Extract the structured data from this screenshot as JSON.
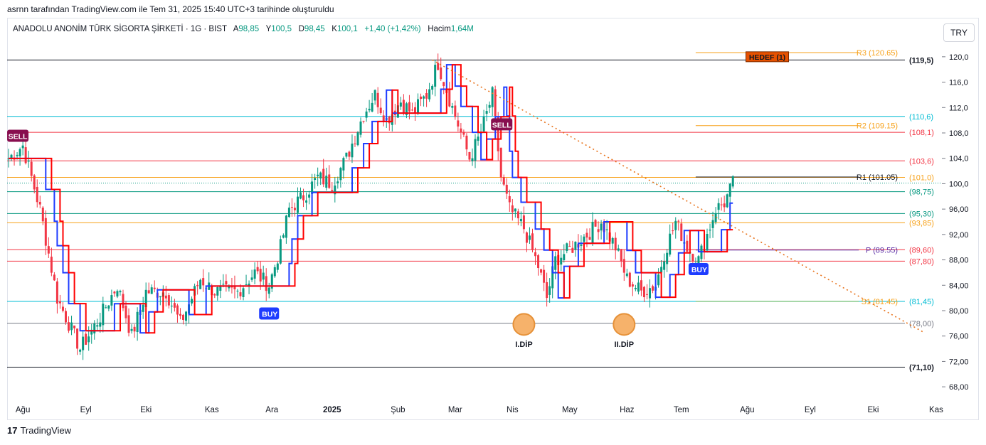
{
  "header": {
    "attribution": "asrnn tarafından TradingView.com ile Tem 31, 2025 15:40 UTC+3 tarihinde oluşturuldu"
  },
  "symbol": {
    "name": "ANADOLU ANONİM TÜRK SİGORTA ŞİRKETİ · 1G · BIST",
    "o_label": "A",
    "o_value": "98,85",
    "h_label": "Y",
    "h_value": "100,5",
    "l_label": "D",
    "l_value": "98,45",
    "c_label": "K",
    "c_value": "100,1",
    "change": "+1,40 (+1,42%)",
    "volume_label": "Hacim",
    "volume_value": "1,64M"
  },
  "currency_button": "TRY",
  "footer": {
    "brand": "TradingView",
    "logo_glyph": "17"
  },
  "colors": {
    "up": "#089981",
    "down": "#f23645",
    "band_red": "#ff0000",
    "band_blue": "#1e3cff",
    "trendline": "#e8731c",
    "pivot_orange": "#f7a21b"
  },
  "chart_data": {
    "type": "candlestick",
    "ylim": [
      66,
      122
    ],
    "y_ticks": [
      68,
      72,
      76,
      80,
      84,
      88,
      92,
      96,
      100,
      104,
      108,
      112,
      116,
      120
    ],
    "y_tick_labels": [
      "68,00",
      "72,00",
      "76,00",
      "80,00",
      "84,00",
      "88,00",
      "92,00",
      "96,00",
      "100,0",
      "104,0",
      "108,0",
      "112,0",
      "116,0",
      "120,0"
    ],
    "x_labels": [
      {
        "label": "Ağu",
        "t": 5
      },
      {
        "label": "Eyl",
        "t": 27
      },
      {
        "label": "Eki",
        "t": 48
      },
      {
        "label": "Kas",
        "t": 71
      },
      {
        "label": "Ara",
        "t": 92
      },
      {
        "label": "2025",
        "t": 113
      },
      {
        "label": "Şub",
        "t": 136
      },
      {
        "label": "Mar",
        "t": 156
      },
      {
        "label": "Nis",
        "t": 176
      },
      {
        "label": "May",
        "t": 196
      },
      {
        "label": "Haz",
        "t": 216
      },
      {
        "label": "Tem",
        "t": 235
      },
      {
        "label": "Ağu",
        "t": 258
      },
      {
        "label": "Eyl",
        "t": 280
      },
      {
        "label": "Eki",
        "t": 302
      },
      {
        "label": "Kas",
        "t": 324
      }
    ],
    "price_path": [
      [
        0,
        104
      ],
      [
        5,
        106
      ],
      [
        11,
        96
      ],
      [
        17,
        82
      ],
      [
        25,
        74
      ],
      [
        32,
        79
      ],
      [
        38,
        84
      ],
      [
        43,
        76
      ],
      [
        48,
        83
      ],
      [
        55,
        83
      ],
      [
        60,
        78
      ],
      [
        67,
        85
      ],
      [
        72,
        83
      ],
      [
        80,
        83
      ],
      [
        86,
        86
      ],
      [
        91,
        84
      ],
      [
        95,
        90
      ],
      [
        98,
        96
      ],
      [
        103,
        98
      ],
      [
        108,
        101
      ],
      [
        113,
        100
      ],
      [
        118,
        104
      ],
      [
        124,
        111
      ],
      [
        128,
        114
      ],
      [
        132,
        110
      ],
      [
        137,
        113
      ],
      [
        141,
        111
      ],
      [
        146,
        114
      ],
      [
        150,
        119
      ],
      [
        155,
        112
      ],
      [
        161,
        104
      ],
      [
        165,
        108
      ],
      [
        169,
        114
      ],
      [
        172,
        101
      ],
      [
        175,
        96
      ],
      [
        180,
        93
      ],
      [
        185,
        87
      ],
      [
        188,
        82
      ],
      [
        191,
        88
      ],
      [
        197,
        90
      ],
      [
        202,
        92
      ],
      [
        207,
        94
      ],
      [
        212,
        90
      ],
      [
        216,
        85
      ],
      [
        221,
        83
      ],
      [
        226,
        84
      ],
      [
        229,
        89
      ],
      [
        233,
        94
      ],
      [
        237,
        90
      ],
      [
        241,
        88
      ],
      [
        244,
        92
      ],
      [
        247,
        96
      ],
      [
        250,
        97
      ],
      [
        253,
        100
      ]
    ],
    "horizontal_levels": [
      {
        "label": "(119,5)",
        "value": 119.5,
        "color": "#131722"
      },
      {
        "label": "(110,6)",
        "value": 110.6,
        "color": "#00bcd4"
      },
      {
        "label": "(108,1)",
        "value": 108.1,
        "color": "#f23645"
      },
      {
        "label": "(103,6)",
        "value": 103.6,
        "color": "#f23645"
      },
      {
        "label": "(101,0)",
        "value": 101.0,
        "color": "#f7a21b"
      },
      {
        "label": "(98,75)",
        "value": 98.75,
        "color": "#089981"
      },
      {
        "label": "(95,30)",
        "value": 95.3,
        "color": "#089981"
      },
      {
        "label": "(93,85)",
        "value": 93.85,
        "color": "#f7a21b"
      },
      {
        "label": "(89,60)",
        "value": 89.6,
        "color": "#f23645"
      },
      {
        "label": "(87,80)",
        "value": 87.8,
        "color": "#f23645"
      },
      {
        "label": "(81,45)",
        "value": 81.45,
        "color": "#00bcd4"
      },
      {
        "label": "(78,00)",
        "value": 78.0,
        "color": "#787b86"
      },
      {
        "label": "(71,10)",
        "value": 71.1,
        "color": "#131722"
      }
    ],
    "pivots": [
      {
        "label": "R3 (120.65)",
        "value": 120.65,
        "color": "#f7a21b"
      },
      {
        "label": "R2 (109.15)",
        "value": 109.15,
        "color": "#f7a21b"
      },
      {
        "label": "R1 (101.05)",
        "value": 101.05,
        "color": "#131722"
      },
      {
        "label": "P (89.55)",
        "value": 89.55,
        "color": "#5b2ea6"
      },
      {
        "label": "S1 (81.45)",
        "value": 81.45,
        "color": "#f7a21b"
      }
    ],
    "signals": [
      {
        "label": "SELL",
        "t": 3,
        "value": 107.5,
        "kind": "sell"
      },
      {
        "label": "BUY",
        "t": 91,
        "value": 79.5,
        "kind": "buy"
      },
      {
        "label": "SELL",
        "t": 172,
        "value": 109.3,
        "kind": "sell"
      },
      {
        "label": "BUY",
        "t": 241,
        "value": 86.5,
        "kind": "buy"
      }
    ],
    "annotations": [
      {
        "label": "HEDEF (1)",
        "t": 265,
        "value": 120.0,
        "kind": "target"
      },
      {
        "label": "I.DİP",
        "t": 180,
        "value": 78.0,
        "kind": "bottom"
      },
      {
        "label": "II.DİP",
        "t": 215,
        "value": 78.0,
        "kind": "bottom"
      }
    ],
    "trendline": {
      "from": [
        148,
        119.5
      ],
      "to": [
        320,
        76.5
      ]
    },
    "current_price": 100.1
  }
}
